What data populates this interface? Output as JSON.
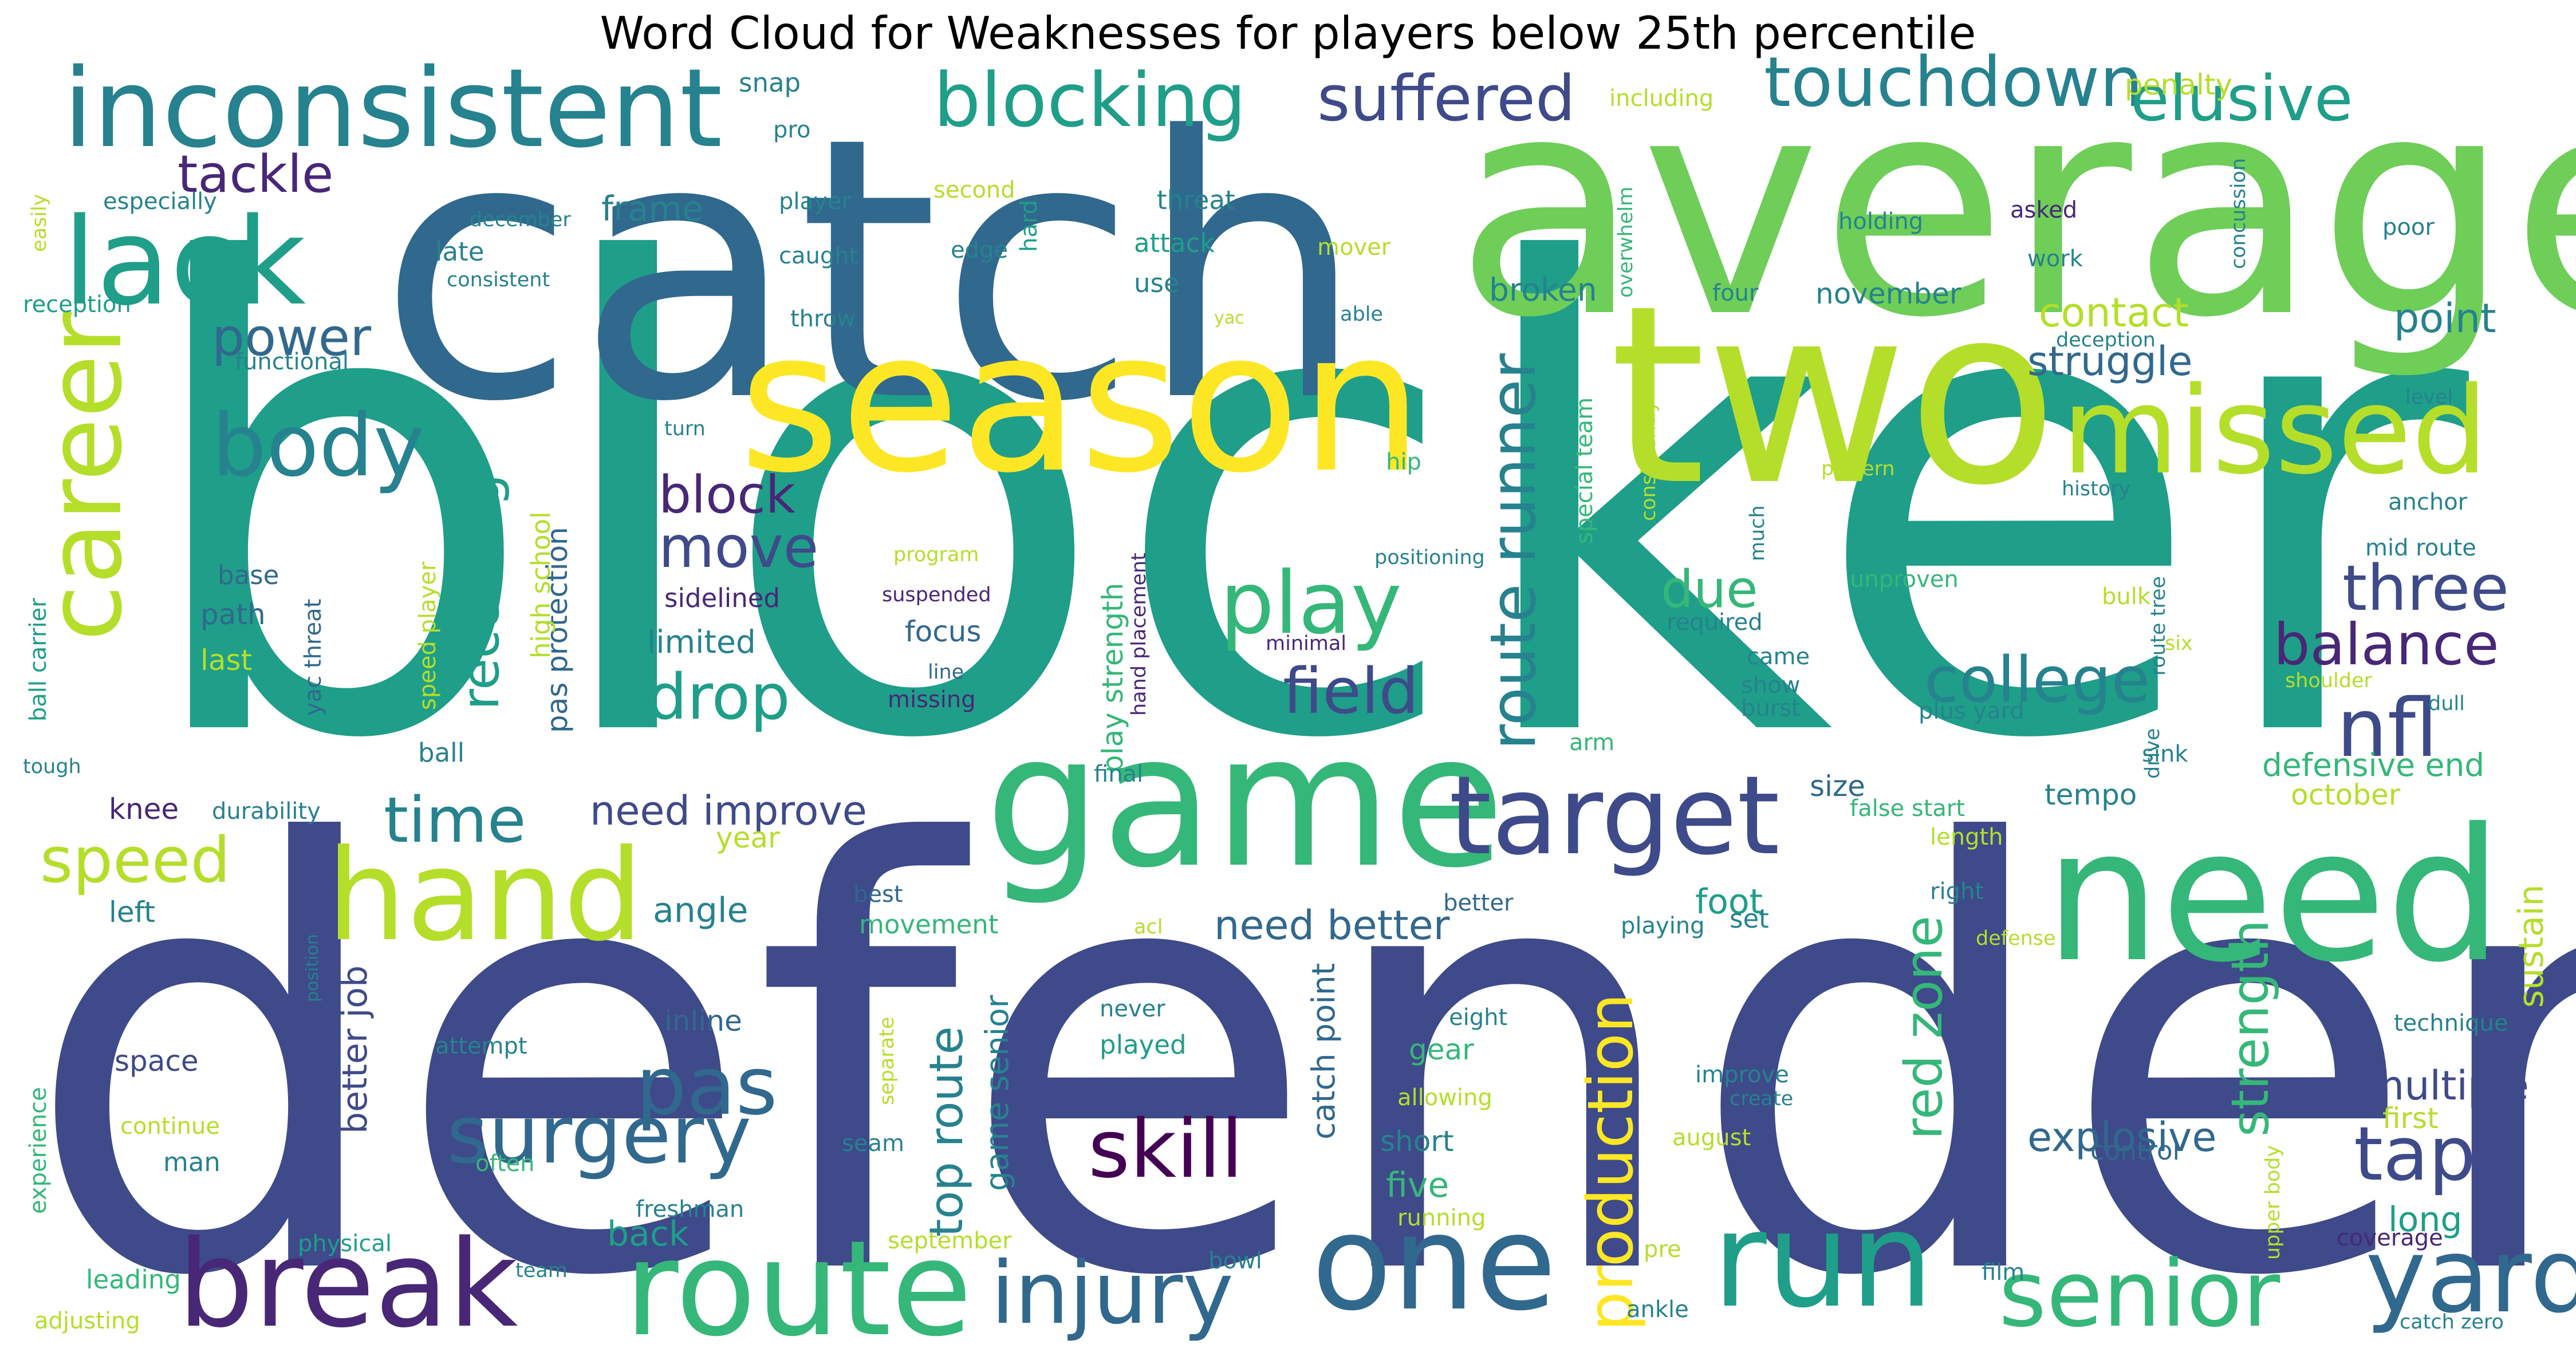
{
  "title": "Word Cloud for Weaknesses for players below 25th percentile",
  "palette": [
    "#440154",
    "#482777",
    "#3e4a89",
    "#31688e",
    "#26828e",
    "#1f9e89",
    "#35b779",
    "#6ece58",
    "#b5de2b",
    "#fde725"
  ],
  "words": [
    {
      "text": "blocker",
      "color": "#1f9e89"
    },
    {
      "text": "defender",
      "color": "#3e4a89"
    },
    {
      "text": "catch",
      "color": "#31688e"
    },
    {
      "text": "average",
      "color": "#6ece58"
    },
    {
      "text": "two",
      "color": "#b5de2b"
    },
    {
      "text": "season",
      "color": "#fde725"
    },
    {
      "text": "game",
      "color": "#35b779"
    },
    {
      "text": "need",
      "color": "#35b779"
    },
    {
      "text": "route",
      "color": "#35b779"
    },
    {
      "text": "break",
      "color": "#482777"
    },
    {
      "text": "one",
      "color": "#31688e"
    },
    {
      "text": "run",
      "color": "#1f9e89"
    },
    {
      "text": "missed",
      "color": "#b5de2b"
    },
    {
      "text": "inconsistent",
      "color": "#26828e"
    },
    {
      "text": "lack",
      "color": "#1f9e89"
    },
    {
      "text": "career",
      "color": "#b5de2b"
    },
    {
      "text": "hand",
      "color": "#b5de2b"
    },
    {
      "text": "target",
      "color": "#3e4a89"
    },
    {
      "text": "senior",
      "color": "#35b779"
    },
    {
      "text": "yard",
      "color": "#31688e"
    },
    {
      "text": "injury",
      "color": "#31688e"
    },
    {
      "text": "surgery",
      "color": "#31688e"
    },
    {
      "text": "play",
      "color": "#35b779"
    },
    {
      "text": "body",
      "color": "#26828e"
    },
    {
      "text": "blocking",
      "color": "#1f9e89"
    },
    {
      "text": "touchdown",
      "color": "#26828e"
    },
    {
      "text": "suffered",
      "color": "#3e4a89"
    },
    {
      "text": "elusive",
      "color": "#1f9e89"
    },
    {
      "text": "nfl",
      "color": "#3e4a89"
    },
    {
      "text": "pas",
      "color": "#31688e"
    },
    {
      "text": "skill",
      "color": "#440154"
    },
    {
      "text": "tape",
      "color": "#3e4a89"
    },
    {
      "text": "production",
      "color": "#fde725"
    },
    {
      "text": "route runner",
      "color": "#26828e"
    },
    {
      "text": "college",
      "color": "#26828e"
    },
    {
      "text": "three",
      "color": "#3e4a89"
    },
    {
      "text": "balance",
      "color": "#482777"
    },
    {
      "text": "speed",
      "color": "#b5de2b"
    },
    {
      "text": "time",
      "color": "#26828e"
    },
    {
      "text": "drop",
      "color": "#1f9e89"
    },
    {
      "text": "field",
      "color": "#3e4a89"
    },
    {
      "text": "move",
      "color": "#3e4a89"
    },
    {
      "text": "block",
      "color": "#482777"
    },
    {
      "text": "tackle",
      "color": "#482777"
    },
    {
      "text": "power",
      "color": "#31688e"
    },
    {
      "text": "receiving",
      "color": "#1f9e89"
    },
    {
      "text": "due",
      "color": "#35b779"
    },
    {
      "text": "strength",
      "color": "#35b779"
    },
    {
      "text": "red zone",
      "color": "#35b779"
    },
    {
      "text": "top route",
      "color": "#26828e"
    },
    {
      "text": "multiple",
      "color": "#3e4a89"
    },
    {
      "text": "struggle",
      "color": "#31688e"
    },
    {
      "text": "contact",
      "color": "#b5de2b"
    },
    {
      "text": "point",
      "color": "#26828e"
    },
    {
      "text": "explosive",
      "color": "#31688e"
    },
    {
      "text": "need improve",
      "color": "#3e4a89"
    },
    {
      "text": "need better",
      "color": "#31688e"
    },
    {
      "text": "angle",
      "color": "#26828e"
    },
    {
      "text": "foot",
      "color": "#1f9e89"
    },
    {
      "text": "five",
      "color": "#35b779"
    },
    {
      "text": "long",
      "color": "#1f9e89"
    },
    {
      "text": "sustain",
      "color": "#b5de2b"
    },
    {
      "text": "defensive end",
      "color": "#35b779"
    },
    {
      "text": "better job",
      "color": "#3e4a89"
    },
    {
      "text": "pas protection",
      "color": "#31688e"
    },
    {
      "text": "catch point",
      "color": "#31688e"
    },
    {
      "text": "game senior",
      "color": "#26828e"
    },
    {
      "text": "play strength",
      "color": "#35b779"
    },
    {
      "text": "frame",
      "color": "#26828e"
    },
    {
      "text": "broken",
      "color": "#26828e"
    },
    {
      "text": "november",
      "color": "#26828e"
    },
    {
      "text": "penalty",
      "color": "#b5de2b"
    },
    {
      "text": "limited",
      "color": "#26828e"
    },
    {
      "text": "back",
      "color": "#1f9e89"
    },
    {
      "text": "focus",
      "color": "#31688e"
    },
    {
      "text": "path",
      "color": "#31688e"
    },
    {
      "text": "last",
      "color": "#b5de2b"
    },
    {
      "text": "left",
      "color": "#26828e"
    },
    {
      "text": "knee",
      "color": "#482777"
    },
    {
      "text": "space",
      "color": "#3e4a89"
    },
    {
      "text": "inline",
      "color": "#31688e"
    },
    {
      "text": "year",
      "color": "#b5de2b"
    },
    {
      "text": "size",
      "color": "#31688e"
    },
    {
      "text": "tempo",
      "color": "#26828e"
    },
    {
      "text": "october",
      "color": "#b5de2b"
    },
    {
      "text": "gear",
      "color": "#35b779"
    },
    {
      "text": "short",
      "color": "#26828e"
    },
    {
      "text": "first",
      "color": "#b5de2b"
    },
    {
      "text": "control",
      "color": "#31688e"
    },
    {
      "text": "high school",
      "color": "#b5de2b"
    },
    {
      "text": "set",
      "color": "#26828e"
    },
    {
      "text": "late",
      "color": "#26828e"
    },
    {
      "text": "leading",
      "color": "#35b779"
    },
    {
      "text": "sidelined",
      "color": "#482777"
    },
    {
      "text": "ball",
      "color": "#26828e"
    },
    {
      "text": "base",
      "color": "#31688e"
    },
    {
      "text": "man",
      "color": "#26828e"
    },
    {
      "text": "speed player",
      "color": "#b5de2b"
    },
    {
      "text": "yac threat",
      "color": "#31688e"
    },
    {
      "text": "ball carrier",
      "color": "#1f9e89"
    },
    {
      "text": "experience",
      "color": "#35b779"
    },
    {
      "text": "reception",
      "color": "#1f9e89"
    },
    {
      "text": "especially",
      "color": "#26828e"
    },
    {
      "text": "easily",
      "color": "#b5de2b"
    },
    {
      "text": "functional",
      "color": "#26828e"
    },
    {
      "text": "tough",
      "color": "#26828e"
    },
    {
      "text": "durability",
      "color": "#26828e"
    },
    {
      "text": "position",
      "color": "#26828e"
    },
    {
      "text": "attempt",
      "color": "#26828e"
    },
    {
      "text": "continue",
      "color": "#b5de2b"
    },
    {
      "text": "often",
      "color": "#35b779"
    },
    {
      "text": "physical",
      "color": "#1f9e89"
    },
    {
      "text": "team",
      "color": "#26828e"
    },
    {
      "text": "adjusting",
      "color": "#b5de2b"
    },
    {
      "text": "freshman",
      "color": "#26828e"
    },
    {
      "text": "seam",
      "color": "#26828e"
    },
    {
      "text": "separate",
      "color": "#b5de2b"
    },
    {
      "text": "bowl",
      "color": "#26828e"
    },
    {
      "text": "september",
      "color": "#b5de2b"
    },
    {
      "text": "movement",
      "color": "#35b779"
    },
    {
      "text": "best",
      "color": "#31688e"
    },
    {
      "text": "acl",
      "color": "#b5de2b"
    },
    {
      "text": "played",
      "color": "#1f9e89"
    },
    {
      "text": "never",
      "color": "#26828e"
    },
    {
      "text": "running",
      "color": "#b5de2b"
    },
    {
      "text": "allowing",
      "color": "#b5de2b"
    },
    {
      "text": "eight",
      "color": "#26828e"
    },
    {
      "text": "better",
      "color": "#31688e"
    },
    {
      "text": "playing",
      "color": "#26828e"
    },
    {
      "text": "final",
      "color": "#26828e"
    },
    {
      "text": "hand placement",
      "color": "#482777"
    },
    {
      "text": "missing",
      "color": "#482777"
    },
    {
      "text": "line",
      "color": "#31688e"
    },
    {
      "text": "suspended",
      "color": "#482777"
    },
    {
      "text": "program",
      "color": "#b5de2b"
    },
    {
      "text": "minimal",
      "color": "#482777"
    },
    {
      "text": "positioning",
      "color": "#26828e"
    },
    {
      "text": "hip",
      "color": "#35b779"
    },
    {
      "text": "turn",
      "color": "#26828e"
    },
    {
      "text": "snap",
      "color": "#26828e"
    },
    {
      "text": "pro",
      "color": "#26828e"
    },
    {
      "text": "player",
      "color": "#26828e"
    },
    {
      "text": "december",
      "color": "#26828e"
    },
    {
      "text": "caught",
      "color": "#26828e"
    },
    {
      "text": "consistent",
      "color": "#26828e"
    },
    {
      "text": "throw",
      "color": "#26828e"
    },
    {
      "text": "second",
      "color": "#b5de2b"
    },
    {
      "text": "hard",
      "color": "#1f9e89"
    },
    {
      "text": "edge",
      "color": "#26828e"
    },
    {
      "text": "threat",
      "color": "#26828e"
    },
    {
      "text": "attack",
      "color": "#1f9e89"
    },
    {
      "text": "use",
      "color": "#26828e"
    },
    {
      "text": "mover",
      "color": "#b5de2b"
    },
    {
      "text": "yac",
      "color": "#b5de2b"
    },
    {
      "text": "able",
      "color": "#26828e"
    },
    {
      "text": "including",
      "color": "#b5de2b"
    },
    {
      "text": "overwhelm",
      "color": "#35b779"
    },
    {
      "text": "special team",
      "color": "#35b779"
    },
    {
      "text": "consistently",
      "color": "#b5de2b"
    },
    {
      "text": "four",
      "color": "#26828e"
    },
    {
      "text": "holding",
      "color": "#26828e"
    },
    {
      "text": "concussion",
      "color": "#26828e"
    },
    {
      "text": "asked",
      "color": "#482777"
    },
    {
      "text": "work",
      "color": "#26828e"
    },
    {
      "text": "poor",
      "color": "#26828e"
    },
    {
      "text": "deception",
      "color": "#26828e"
    },
    {
      "text": "level",
      "color": "#26828e"
    },
    {
      "text": "pattern",
      "color": "#b5de2b"
    },
    {
      "text": "history",
      "color": "#26828e"
    },
    {
      "text": "much",
      "color": "#26828e"
    },
    {
      "text": "unproven",
      "color": "#35b779"
    },
    {
      "text": "required",
      "color": "#26828e"
    },
    {
      "text": "came",
      "color": "#26828e"
    },
    {
      "text": "show",
      "color": "#26828e"
    },
    {
      "text": "burst",
      "color": "#26828e"
    },
    {
      "text": "plus yard",
      "color": "#26828e"
    },
    {
      "text": "sink",
      "color": "#26828e"
    },
    {
      "text": "drive",
      "color": "#26828e"
    },
    {
      "text": "route tree",
      "color": "#26828e"
    },
    {
      "text": "six",
      "color": "#b5de2b"
    },
    {
      "text": "bulk",
      "color": "#b5de2b"
    },
    {
      "text": "shoulder",
      "color": "#b5de2b"
    },
    {
      "text": "dull",
      "color": "#26828e"
    },
    {
      "text": "anchor",
      "color": "#26828e"
    },
    {
      "text": "mid route",
      "color": "#26828e"
    },
    {
      "text": "arm",
      "color": "#35b779"
    },
    {
      "text": "false start",
      "color": "#35b779"
    },
    {
      "text": "length",
      "color": "#b5de2b"
    },
    {
      "text": "right",
      "color": "#26828e"
    },
    {
      "text": "defense",
      "color": "#b5de2b"
    },
    {
      "text": "technique",
      "color": "#26828e"
    },
    {
      "text": "improve",
      "color": "#26828e"
    },
    {
      "text": "create",
      "color": "#26828e"
    },
    {
      "text": "august",
      "color": "#b5de2b"
    },
    {
      "text": "upper body",
      "color": "#b5de2b"
    },
    {
      "text": "coverage",
      "color": "#482777"
    },
    {
      "text": "pre",
      "color": "#b5de2b"
    },
    {
      "text": "film",
      "color": "#26828e"
    },
    {
      "text": "ankle",
      "color": "#26828e"
    },
    {
      "text": "catch zero",
      "color": "#26828e"
    }
  ]
}
